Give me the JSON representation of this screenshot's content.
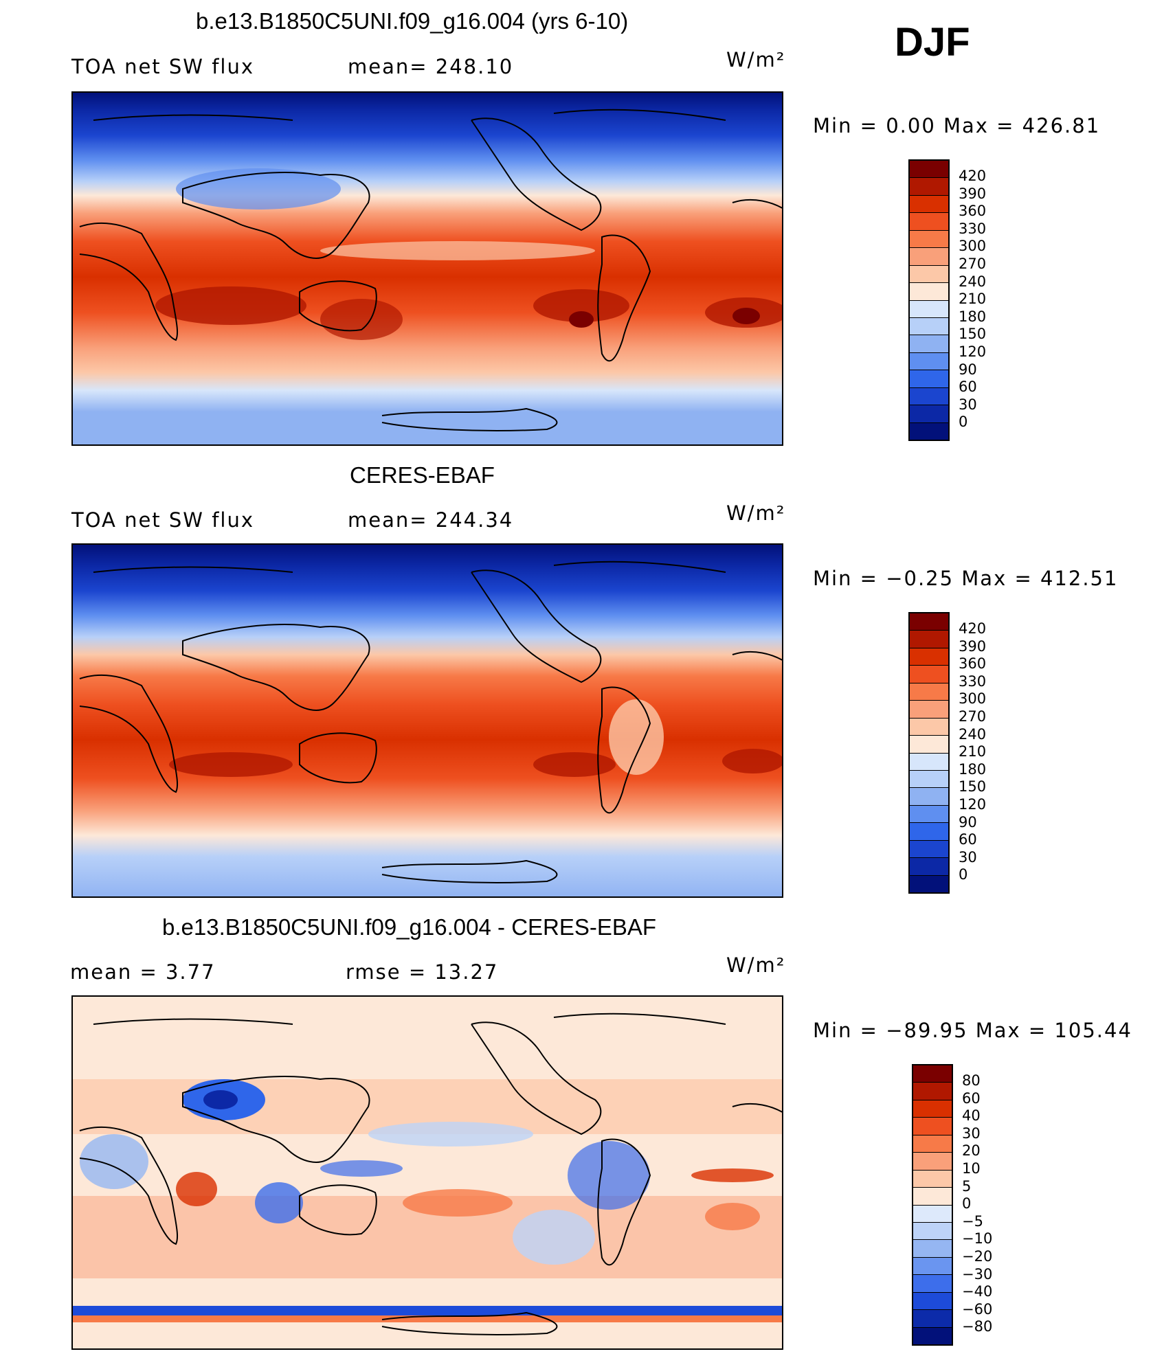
{
  "season": "DJF",
  "panels": [
    {
      "title": "b.e13.B1850C5UNI.f09_g16.004 (yrs 6-10)",
      "left_label": "TOA net SW flux",
      "mean_label": "mean= 248.10",
      "units": "W/m²",
      "minmax": "Min =   0.00 Max = 426.81",
      "colorbar_labels": [
        "420",
        "390",
        "360",
        "330",
        "300",
        "270",
        "240",
        "210",
        "180",
        "150",
        "120",
        "90",
        "60",
        "30",
        "0"
      ]
    },
    {
      "title": "CERES-EBAF",
      "left_label": "TOA net SW flux",
      "mean_label": "mean= 244.34",
      "units": "W/m²",
      "minmax": "Min = −0.25 Max = 412.51",
      "colorbar_labels": [
        "420",
        "390",
        "360",
        "330",
        "300",
        "270",
        "240",
        "210",
        "180",
        "150",
        "120",
        "90",
        "60",
        "30",
        "0"
      ]
    },
    {
      "title": "b.e13.B1850C5UNI.f09_g16.004 - CERES-EBAF",
      "left_label": "mean =    3.77",
      "mean_label": "rmse =   13.27",
      "units": "W/m²",
      "minmax": "Min = −89.95 Max = 105.44",
      "colorbar_labels": [
        "80",
        "60",
        "40",
        "30",
        "20",
        "10",
        "5",
        "0",
        "−5",
        "−10",
        "−20",
        "−30",
        "−40",
        "−60",
        "−80"
      ]
    }
  ],
  "colors": {
    "abs_scale": [
      "#7a0000",
      "#b01800",
      "#d93000",
      "#ee5020",
      "#f77a48",
      "#f9a07a",
      "#fcc8a8",
      "#fde8d8",
      "#d7e6fb",
      "#b7d0f8",
      "#8fb2f2",
      "#5f8ff0",
      "#2f66ea",
      "#1b45cf",
      "#0c28a6",
      "#02117a"
    ],
    "diff_scale": [
      "#7a0000",
      "#b01800",
      "#d93000",
      "#ee5020",
      "#f77a48",
      "#f9a07a",
      "#fcc8a8",
      "#fde8d8",
      "#dde9fb",
      "#bdd3f8",
      "#95b6f2",
      "#6a95f0",
      "#3d6eeb",
      "#1d4bd9",
      "#0c2baa",
      "#02117a"
    ]
  }
}
